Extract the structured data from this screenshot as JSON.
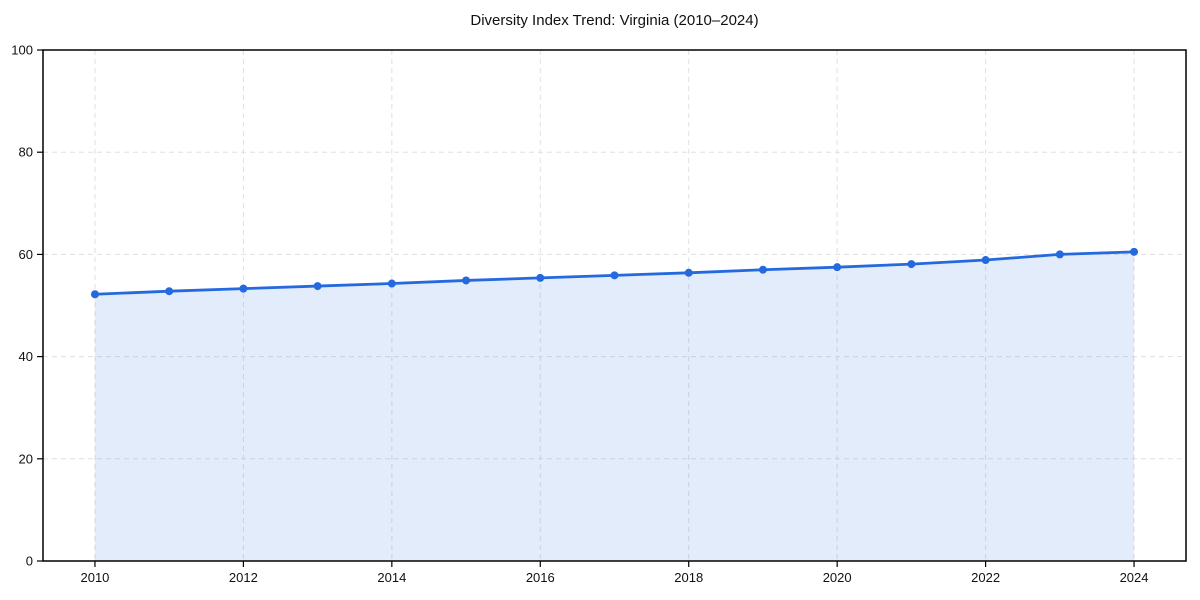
{
  "title": "Diversity Index Trend: Virginia (2010–2024)",
  "colors": {
    "line": "#2569de",
    "marker": "#2569de",
    "fill": "rgba(37, 105, 222, 0.13)",
    "grid": "#e0e0e0",
    "axis": "#000000",
    "text": "#111111",
    "background": "#ffffff"
  },
  "chart_data": {
    "type": "area",
    "title": "Diversity Index Trend: Virginia (2010–2024)",
    "xlabel": "",
    "ylabel": "",
    "x": [
      2010,
      2011,
      2012,
      2013,
      2014,
      2015,
      2016,
      2017,
      2018,
      2019,
      2020,
      2021,
      2022,
      2023,
      2024
    ],
    "series": [
      {
        "name": "Diversity Index",
        "values": [
          52.2,
          52.8,
          53.3,
          53.8,
          54.3,
          54.9,
          55.4,
          55.9,
          56.4,
          57.0,
          57.5,
          58.1,
          58.9,
          60.0,
          60.5
        ]
      }
    ],
    "xlim": [
      2009.3,
      2024.7
    ],
    "ylim": [
      0,
      100
    ],
    "x_ticks": [
      2010,
      2012,
      2014,
      2016,
      2018,
      2020,
      2022,
      2024
    ],
    "y_ticks": [
      0,
      20,
      40,
      60,
      80,
      100
    ],
    "grid": true,
    "grid_style": "dashed",
    "legend_position": "none",
    "marker": "circle",
    "fill_to_zero": true
  }
}
